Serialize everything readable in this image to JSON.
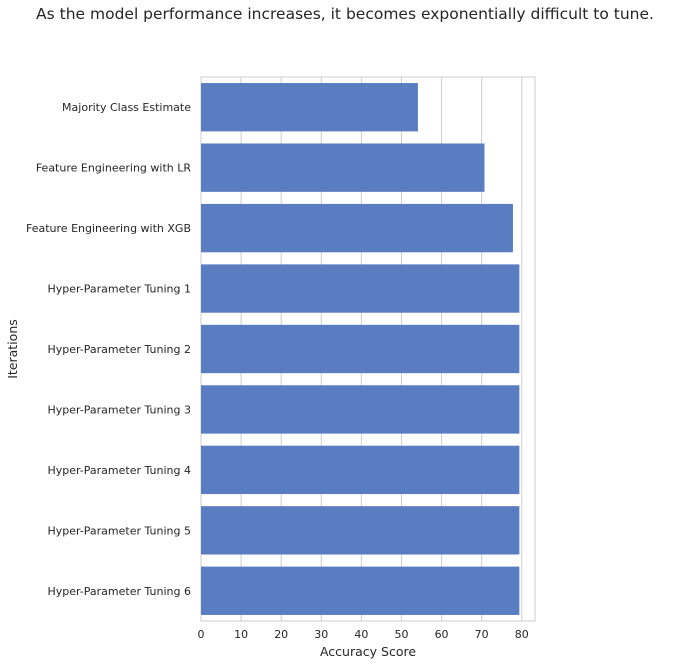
{
  "chart_data": {
    "type": "bar",
    "orientation": "horizontal",
    "title": "As the model performance increases, it becomes exponentially difficult to tune.",
    "xlabel": "Accuracy Score",
    "ylabel": "Iterations",
    "categories": [
      "Majority Class Estimate",
      "Feature Engineering with LR",
      "Feature Engineering with XGB",
      "Hyper-Parameter Tuning 1",
      "Hyper-Parameter Tuning 2",
      "Hyper-Parameter Tuning 3",
      "Hyper-Parameter Tuning 4",
      "Hyper-Parameter Tuning 5",
      "Hyper-Parameter Tuning 6"
    ],
    "values": [
      54.1,
      70.7,
      77.8,
      79.4,
      79.4,
      79.4,
      79.4,
      79.4,
      79.4
    ],
    "xlim": [
      0,
      83.3
    ],
    "xticks": [
      "0",
      "10",
      "20",
      "30",
      "40",
      "50",
      "60",
      "70",
      "80"
    ],
    "grid": true,
    "bar_color": "#5a7dc1",
    "grid_color": "#cccccc"
  }
}
